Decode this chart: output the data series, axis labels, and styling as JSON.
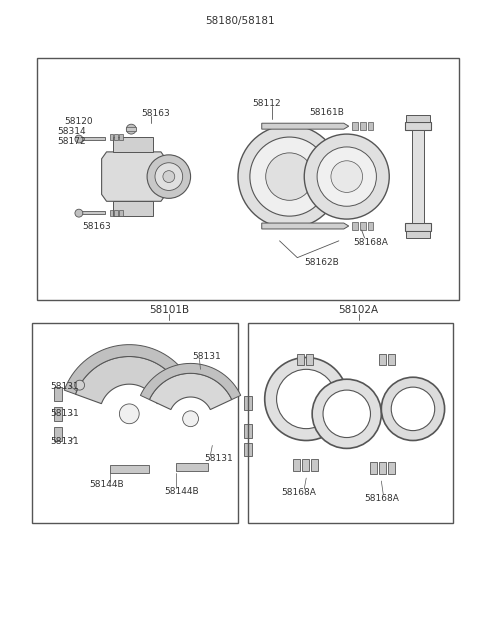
{
  "bg_color": "#ffffff",
  "fig_width": 4.8,
  "fig_height": 6.25,
  "dpi": 100,
  "title_top": "58180/58181",
  "label_58101B": "58101B",
  "label_58102A": "58102A",
  "font_size_label": 6.5,
  "font_size_title": 7.5,
  "line_color": "#555555",
  "fill_color": "#e8e8e8",
  "white": "#ffffff"
}
